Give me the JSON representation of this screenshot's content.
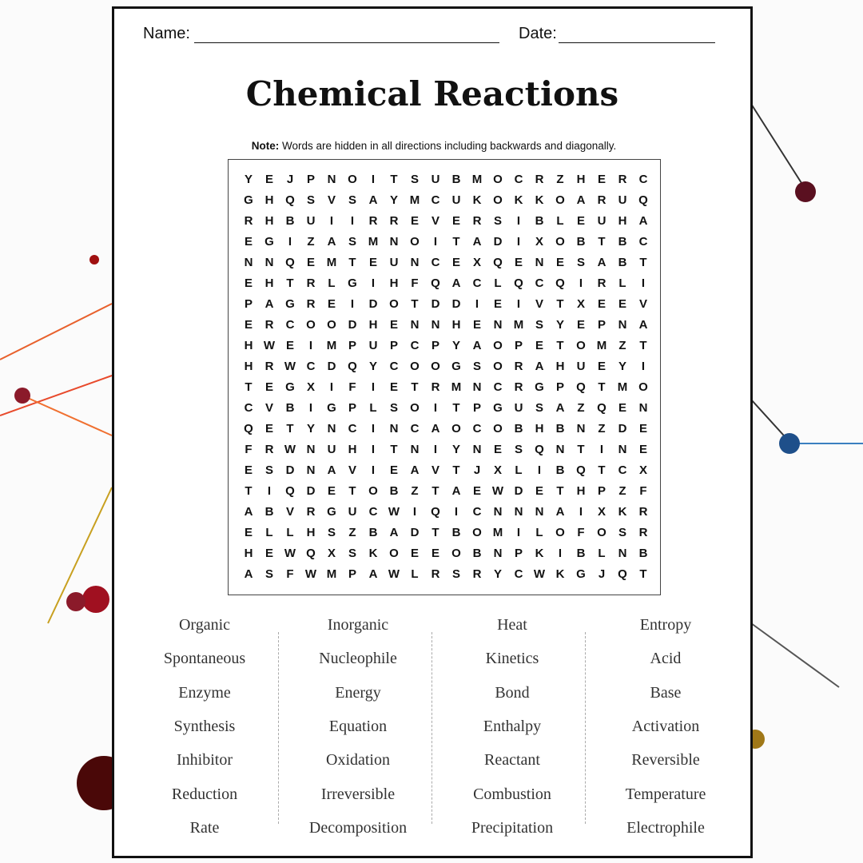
{
  "header": {
    "name_label": "Name:",
    "date_label": "Date:"
  },
  "title": "Chemical Reactions",
  "note": {
    "label": "Note:",
    "text": "Words are hidden in all directions including backwards and diagonally."
  },
  "grid": {
    "rows": [
      [
        "Y",
        "E",
        "J",
        "P",
        "N",
        "O",
        "I",
        "T",
        "S",
        "U",
        "B",
        "M",
        "O",
        "C",
        "R",
        "Z",
        "H",
        "E",
        "R",
        "C"
      ],
      [
        "G",
        "H",
        "Q",
        "S",
        "V",
        "S",
        "A",
        "Y",
        "M",
        "C",
        "U",
        "K",
        "O",
        "K",
        "K",
        "O",
        "A",
        "R",
        "U",
        "Q"
      ],
      [
        "R",
        "H",
        "B",
        "U",
        "I",
        "I",
        "R",
        "R",
        "E",
        "V",
        "E",
        "R",
        "S",
        "I",
        "B",
        "L",
        "E",
        "U",
        "H",
        "A"
      ],
      [
        "E",
        "G",
        "I",
        "Z",
        "A",
        "S",
        "M",
        "N",
        "O",
        "I",
        "T",
        "A",
        "D",
        "I",
        "X",
        "O",
        "B",
        "T",
        "B",
        "C"
      ],
      [
        "N",
        "N",
        "Q",
        "E",
        "M",
        "T",
        "E",
        "U",
        "N",
        "C",
        "E",
        "X",
        "Q",
        "E",
        "N",
        "E",
        "S",
        "A",
        "B",
        "T"
      ],
      [
        "E",
        "H",
        "T",
        "R",
        "L",
        "G",
        "I",
        "H",
        "F",
        "Q",
        "A",
        "C",
        "L",
        "Q",
        "C",
        "Q",
        "I",
        "R",
        "L",
        "I"
      ],
      [
        "P",
        "A",
        "G",
        "R",
        "E",
        "I",
        "D",
        "O",
        "T",
        "D",
        "D",
        "I",
        "E",
        "I",
        "V",
        "T",
        "X",
        "E",
        "E",
        "V"
      ],
      [
        "E",
        "R",
        "C",
        "O",
        "O",
        "D",
        "H",
        "E",
        "N",
        "N",
        "H",
        "E",
        "N",
        "M",
        "S",
        "Y",
        "E",
        "P",
        "N",
        "A"
      ],
      [
        "H",
        "W",
        "E",
        "I",
        "M",
        "P",
        "U",
        "P",
        "C",
        "P",
        "Y",
        "A",
        "O",
        "P",
        "E",
        "T",
        "O",
        "M",
        "Z",
        "T"
      ],
      [
        "H",
        "R",
        "W",
        "C",
        "D",
        "Q",
        "Y",
        "C",
        "O",
        "O",
        "G",
        "S",
        "O",
        "R",
        "A",
        "H",
        "U",
        "E",
        "Y",
        "I"
      ],
      [
        "T",
        "E",
        "G",
        "X",
        "I",
        "F",
        "I",
        "E",
        "T",
        "R",
        "M",
        "N",
        "C",
        "R",
        "G",
        "P",
        "Q",
        "T",
        "M",
        "O"
      ],
      [
        "C",
        "V",
        "B",
        "I",
        "G",
        "P",
        "L",
        "S",
        "O",
        "I",
        "T",
        "P",
        "G",
        "U",
        "S",
        "A",
        "Z",
        "Q",
        "E",
        "N"
      ],
      [
        "Q",
        "E",
        "T",
        "Y",
        "N",
        "C",
        "I",
        "N",
        "C",
        "A",
        "O",
        "C",
        "O",
        "B",
        "H",
        "B",
        "N",
        "Z",
        "D",
        "E"
      ],
      [
        "F",
        "R",
        "W",
        "N",
        "U",
        "H",
        "I",
        "T",
        "N",
        "I",
        "Y",
        "N",
        "E",
        "S",
        "Q",
        "N",
        "T",
        "I",
        "N",
        "E"
      ],
      [
        "E",
        "S",
        "D",
        "N",
        "A",
        "V",
        "I",
        "E",
        "A",
        "V",
        "T",
        "J",
        "X",
        "L",
        "I",
        "B",
        "Q",
        "T",
        "C",
        "X"
      ],
      [
        "T",
        "I",
        "Q",
        "D",
        "E",
        "T",
        "O",
        "B",
        "Z",
        "T",
        "A",
        "E",
        "W",
        "D",
        "E",
        "T",
        "H",
        "P",
        "Z",
        "F"
      ],
      [
        "A",
        "B",
        "V",
        "R",
        "G",
        "U",
        "C",
        "W",
        "I",
        "Q",
        "I",
        "C",
        "N",
        "N",
        "N",
        "A",
        "I",
        "X",
        "K",
        "R"
      ],
      [
        "E",
        "L",
        "L",
        "H",
        "S",
        "Z",
        "B",
        "A",
        "D",
        "T",
        "B",
        "O",
        "M",
        "I",
        "L",
        "O",
        "F",
        "O",
        "S",
        "R"
      ],
      [
        "H",
        "E",
        "W",
        "Q",
        "X",
        "S",
        "K",
        "O",
        "E",
        "E",
        "O",
        "B",
        "N",
        "P",
        "K",
        "I",
        "B",
        "L",
        "N",
        "B"
      ],
      [
        "A",
        "S",
        "F",
        "W",
        "M",
        "P",
        "A",
        "W",
        "L",
        "R",
        "S",
        "R",
        "Y",
        "C",
        "W",
        "K",
        "G",
        "J",
        "Q",
        "T"
      ]
    ]
  },
  "words": {
    "columns": [
      [
        "Organic",
        "Spontaneous",
        "Enzyme",
        "Synthesis",
        "Inhibitor",
        "Reduction",
        "Rate"
      ],
      [
        "Inorganic",
        "Nucleophile",
        "Energy",
        "Equation",
        "Oxidation",
        "Irreversible",
        "Decomposition"
      ],
      [
        "Heat",
        "Kinetics",
        "Bond",
        "Enthalpy",
        "Reactant",
        "Combustion",
        "Precipitation"
      ],
      [
        "Entropy",
        "Acid",
        "Base",
        "Activation",
        "Reversible",
        "Temperature",
        "Electrophile"
      ]
    ]
  }
}
